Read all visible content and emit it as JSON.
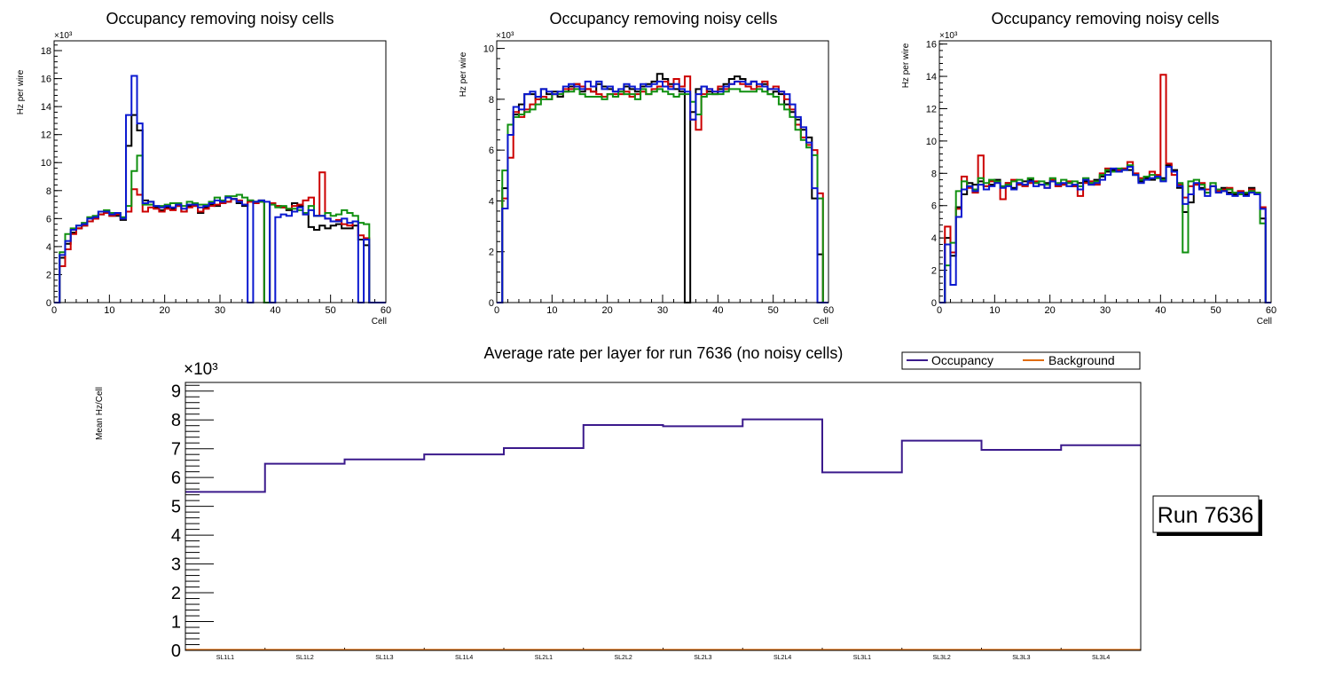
{
  "colors": {
    "black": "#000000",
    "red": "#cc0000",
    "green": "#109010",
    "blue": "#0a18d0",
    "occupancy": "#3b1a8c",
    "background": "#e06c0c"
  },
  "chart_data": [
    {
      "type": "step",
      "title": "Occupancy removing noisy cells",
      "xlabel": "Cell",
      "ylabel": "Hz per wire",
      "y_exponent_label": "×10³",
      "xlim": [
        0,
        60
      ],
      "ylim": [
        0,
        18.7
      ],
      "x_ticks": [
        0,
        10,
        20,
        30,
        40,
        50,
        60
      ],
      "y_ticks": [
        0,
        2,
        4,
        6,
        8,
        10,
        12,
        14,
        16,
        18
      ],
      "bin_width": 1,
      "series": [
        {
          "name": "layer-black",
          "color": "black",
          "values": [
            0,
            3.2,
            4.2,
            5,
            5.3,
            5.5,
            5.8,
            6,
            6.3,
            6.4,
            6.2,
            6.2,
            5.9,
            11.2,
            13.4,
            12.3,
            7.3,
            7.2,
            6.8,
            6.6,
            6.8,
            6.7,
            6.9,
            6.5,
            6.9,
            6.9,
            6.4,
            6.8,
            7,
            6.9,
            7.1,
            7.2,
            7.4,
            7.1,
            6.9,
            7.3,
            7.2,
            7.3,
            0,
            7.1,
            6.9,
            6.8,
            6.6,
            7.1,
            6.9,
            6.3,
            5.4,
            5.2,
            5.5,
            5.3,
            5.5,
            5.6,
            5.3,
            5.3,
            5.5,
            4.5,
            4.1,
            0,
            0,
            0
          ]
        },
        {
          "name": "layer-red",
          "color": "red",
          "values": [
            0,
            2.6,
            3.8,
            4.9,
            5.3,
            5.5,
            5.8,
            6,
            6.3,
            6.4,
            6.2,
            6.3,
            6,
            6.5,
            8.1,
            7.7,
            6.5,
            6.8,
            6.7,
            6.5,
            6.7,
            6.6,
            6.9,
            6.5,
            6.8,
            6.9,
            6.5,
            6.7,
            6.9,
            7,
            7.1,
            7.2,
            7.4,
            7.3,
            7,
            7.2,
            7.1,
            7.2,
            0,
            7.1,
            6.9,
            6.8,
            6.7,
            6.9,
            7,
            7.3,
            7.5,
            6.2,
            9.3,
            6,
            5.8,
            5.9,
            5.6,
            5.5,
            5.8,
            4.8,
            4.6,
            0,
            0,
            0
          ]
        },
        {
          "name": "layer-green",
          "color": "green",
          "values": [
            0,
            3.6,
            4.9,
            5.3,
            5.5,
            5.7,
            6.1,
            6.2,
            6.5,
            6.6,
            6.4,
            6.4,
            6.1,
            6.9,
            9.4,
            10.5,
            7,
            7,
            6.9,
            6.9,
            7,
            7.1,
            7.1,
            6.9,
            7.2,
            7.1,
            7,
            7,
            7.2,
            7.5,
            7.3,
            7.6,
            7.6,
            7.7,
            7.5,
            7.3,
            7.2,
            7.2,
            0,
            7,
            6.8,
            6.9,
            6.7,
            6.7,
            6.6,
            6.4,
            6.9,
            6.2,
            6.2,
            6.4,
            6.2,
            6.3,
            6.6,
            6.4,
            6.2,
            5.7,
            5.6,
            0,
            0,
            0
          ]
        },
        {
          "name": "layer-blue",
          "color": "blue",
          "values": [
            0,
            3.4,
            4.4,
            5.2,
            5.5,
            5.6,
            6,
            6.1,
            6.5,
            6.5,
            6.3,
            6.4,
            6,
            13.4,
            16.2,
            12.8,
            7.1,
            7.2,
            6.9,
            6.8,
            6.9,
            6.8,
            7,
            6.7,
            7,
            7,
            6.8,
            6.9,
            7.1,
            7.3,
            7.2,
            7.5,
            7.4,
            7.2,
            7,
            0,
            7.2,
            7.3,
            7.2,
            0,
            6.1,
            6.3,
            6.2,
            6.5,
            6.8,
            6.3,
            6.6,
            6.2,
            6.2,
            6,
            5.8,
            5.8,
            6,
            5.7,
            5.8,
            0,
            4.5,
            0,
            0,
            0
          ]
        }
      ]
    },
    {
      "type": "step",
      "title": "Occupancy removing noisy cells",
      "xlabel": "Cell",
      "ylabel": "Hz per wire",
      "y_exponent_label": "×10³",
      "xlim": [
        0,
        60
      ],
      "ylim": [
        0,
        10.3
      ],
      "x_ticks": [
        0,
        10,
        20,
        30,
        40,
        50,
        60
      ],
      "y_ticks": [
        0,
        2,
        4,
        6,
        8,
        10
      ],
      "bin_width": 1,
      "series": [
        {
          "name": "layer-black",
          "color": "black",
          "values": [
            0,
            4.5,
            6.6,
            7.4,
            7.8,
            8.2,
            8.2,
            8,
            8.4,
            8.2,
            8.3,
            8.1,
            8.3,
            8.5,
            8.6,
            8.3,
            8.4,
            8.3,
            8.6,
            8.5,
            8.4,
            8.3,
            8.3,
            8.5,
            8.4,
            8.3,
            8.5,
            8.6,
            8.7,
            9,
            8.8,
            8.6,
            8.4,
            8.3,
            0,
            7.5,
            8.4,
            8.5,
            8.3,
            8.2,
            8.4,
            8.6,
            8.8,
            8.9,
            8.8,
            8.6,
            8.7,
            8.5,
            8.6,
            8.2,
            8.3,
            8.2,
            7.8,
            7.5,
            7.2,
            6.8,
            6.5,
            4.1,
            1.9,
            0
          ]
        },
        {
          "name": "layer-red",
          "color": "red",
          "values": [
            0,
            4.1,
            5.7,
            7.5,
            7.3,
            7.6,
            7.8,
            8,
            8.1,
            8,
            8.2,
            8.2,
            8.4,
            8.4,
            8.6,
            8.5,
            8.4,
            8.3,
            8.2,
            8.1,
            8.2,
            8.2,
            8.2,
            8.3,
            8.1,
            8.2,
            8.3,
            8.2,
            8.4,
            8.5,
            8.7,
            8.5,
            8.8,
            8.5,
            8.9,
            7.2,
            6.8,
            8.2,
            8.4,
            8.3,
            8.5,
            8.4,
            8.6,
            8.7,
            8.6,
            8.5,
            8.4,
            8.5,
            8.7,
            8.4,
            8.5,
            8.3,
            8,
            7.6,
            7,
            6.5,
            6.2,
            6,
            4.3,
            0
          ]
        },
        {
          "name": "layer-green",
          "color": "green",
          "values": [
            0,
            5.2,
            7,
            7.3,
            7.4,
            7.5,
            7.6,
            7.8,
            8,
            8,
            8.2,
            8.2,
            8.3,
            8.3,
            8.4,
            8.2,
            8.1,
            8.1,
            8.1,
            8,
            8.2,
            8.1,
            8.3,
            8.2,
            8.2,
            8,
            8.4,
            8.2,
            8.3,
            8.4,
            8.3,
            8.2,
            8.1,
            8.2,
            8.2,
            7.9,
            7.4,
            8.1,
            8.2,
            8.2,
            8.2,
            8.3,
            8.4,
            8.4,
            8.3,
            8.3,
            8.3,
            8.4,
            8.3,
            8.2,
            8.1,
            7.8,
            7.6,
            7.3,
            6.8,
            6.4,
            6.1,
            5.8,
            4.1,
            0
          ]
        },
        {
          "name": "layer-blue",
          "color": "blue",
          "values": [
            0,
            3.7,
            6.6,
            7.7,
            7.6,
            8.2,
            8.3,
            8.1,
            8.4,
            8.3,
            8.2,
            8.3,
            8.5,
            8.6,
            8.5,
            8.4,
            8.7,
            8.5,
            8.7,
            8.4,
            8.5,
            8.3,
            8.4,
            8.6,
            8.5,
            8.4,
            8.6,
            8.5,
            8.6,
            8.7,
            8.5,
            8.4,
            8.6,
            8.4,
            8.3,
            7.2,
            8.2,
            8.5,
            8.4,
            8.3,
            8.3,
            8.5,
            8.6,
            8.7,
            8.7,
            8.6,
            8.7,
            8.6,
            8.5,
            8.4,
            8.4,
            8.3,
            8.2,
            7.8,
            7.3,
            6.9,
            6.3,
            4.5,
            0,
            0
          ]
        }
      ]
    },
    {
      "type": "step",
      "title": "Occupancy removing noisy cells",
      "xlabel": "Cell",
      "ylabel": "Hz per wire",
      "y_exponent_label": "×10³",
      "xlim": [
        0,
        60
      ],
      "ylim": [
        0,
        16.2
      ],
      "x_ticks": [
        0,
        10,
        20,
        30,
        40,
        50,
        60
      ],
      "y_ticks": [
        0,
        2,
        4,
        6,
        8,
        10,
        12,
        14,
        16
      ],
      "bin_width": 1,
      "series": [
        {
          "name": "layer-black",
          "color": "black",
          "values": [
            0,
            4,
            2.9,
            5.9,
            6.7,
            7.4,
            7.3,
            7.5,
            7.2,
            7.3,
            7.6,
            7.2,
            7.4,
            7.1,
            7.3,
            7.5,
            7.6,
            7.4,
            7.3,
            7.4,
            7.5,
            7.2,
            7.3,
            7.4,
            7.2,
            7.4,
            7.5,
            7.3,
            7.6,
            7.8,
            8.1,
            8.2,
            8.1,
            8.3,
            8.2,
            7.9,
            7.5,
            7.7,
            7.6,
            7.8,
            7.7,
            8.5,
            8.2,
            7.1,
            5.6,
            6.2,
            7.3,
            7.1,
            6.8,
            7.2,
            6.9,
            7.1,
            6.8,
            6.7,
            6.9,
            6.7,
            7.1,
            6.7,
            5.2,
            0
          ]
        },
        {
          "name": "layer-red",
          "color": "red",
          "values": [
            0,
            4.7,
            3.1,
            5.8,
            7.8,
            7.1,
            6.8,
            9.1,
            7.2,
            7.5,
            7.5,
            6.4,
            7.4,
            7.6,
            7.3,
            7.2,
            7.4,
            7.5,
            7.3,
            7.1,
            7.6,
            7.2,
            7.3,
            7.5,
            7.2,
            6.6,
            7.4,
            7.5,
            7.3,
            8,
            8.3,
            8.1,
            8.2,
            8.3,
            8.7,
            8,
            7.7,
            7.8,
            8.1,
            7.9,
            14.1,
            8.6,
            7.9,
            7.3,
            6.5,
            7.2,
            7.3,
            7.4,
            7,
            7.2,
            6.9,
            7,
            7.1,
            6.8,
            6.9,
            6.8,
            7,
            6.8,
            5.9,
            0
          ]
        },
        {
          "name": "layer-green",
          "color": "green",
          "values": [
            0,
            2.3,
            3.7,
            6.9,
            7.5,
            7.2,
            7,
            7.7,
            7.4,
            7.6,
            7.5,
            7.2,
            7.3,
            7.5,
            7.6,
            7.3,
            7.7,
            7.4,
            7.5,
            7.3,
            7.7,
            7.4,
            7.6,
            7.4,
            7.5,
            7.2,
            7.7,
            7.4,
            7.5,
            7.9,
            8.2,
            8.1,
            8.3,
            8.2,
            8.5,
            7.9,
            7.6,
            7.8,
            7.9,
            7.7,
            7.6,
            8.4,
            8.1,
            7.4,
            3.1,
            7.5,
            7.6,
            7.3,
            6.8,
            7.4,
            7,
            6.9,
            7,
            6.8,
            6.7,
            6.8,
            6.9,
            6.8,
            4.9,
            0
          ]
        },
        {
          "name": "layer-blue",
          "color": "blue",
          "values": [
            0,
            3.6,
            1.1,
            5.3,
            7,
            7.2,
            6.9,
            7.3,
            7,
            7.2,
            7.4,
            7.1,
            7.2,
            7,
            7.4,
            7.3,
            7.5,
            7.2,
            7.3,
            7.1,
            7.5,
            7.3,
            7.4,
            7.2,
            7.3,
            7,
            7.6,
            7.3,
            7.4,
            7.6,
            7.9,
            8.3,
            8.1,
            8.2,
            8.4,
            7.9,
            7.4,
            7.6,
            7.7,
            7.8,
            7.5,
            8.4,
            8.1,
            7.2,
            6.1,
            6.7,
            7.4,
            7,
            6.6,
            7.2,
            6.8,
            6.9,
            6.7,
            6.6,
            6.8,
            6.6,
            6.8,
            6.7,
            5.8,
            0
          ]
        }
      ]
    },
    {
      "type": "step",
      "title": "Average rate per layer for run 7636 (no noisy cells)",
      "xlabel": "",
      "ylabel": "Mean Hz/Cell",
      "y_exponent_label": "×10³",
      "ylim": [
        0,
        9.3
      ],
      "y_ticks": [
        0,
        1,
        2,
        3,
        4,
        5,
        6,
        7,
        8,
        9
      ],
      "categories": [
        "SL1L1",
        "SL1L2",
        "SL1L3",
        "SL1L4",
        "SL2L1",
        "SL2L2",
        "SL2L3",
        "SL2L4",
        "SL3L1",
        "SL3L2",
        "SL3L3",
        "SL3L4"
      ],
      "legend_position": "top-right",
      "series": [
        {
          "name": "Occupancy",
          "color": "occupancy",
          "values": [
            5.5,
            6.48,
            6.63,
            6.8,
            7.02,
            7.82,
            7.78,
            8.02,
            6.18,
            7.28,
            6.96,
            7.12
          ]
        },
        {
          "name": "Background",
          "color": "background",
          "values": [
            0.02,
            0.02,
            0.02,
            0.02,
            0.02,
            0.02,
            0.02,
            0.02,
            0.02,
            0.02,
            0.02,
            0.02
          ]
        }
      ]
    }
  ],
  "run_label": "Run 7636"
}
